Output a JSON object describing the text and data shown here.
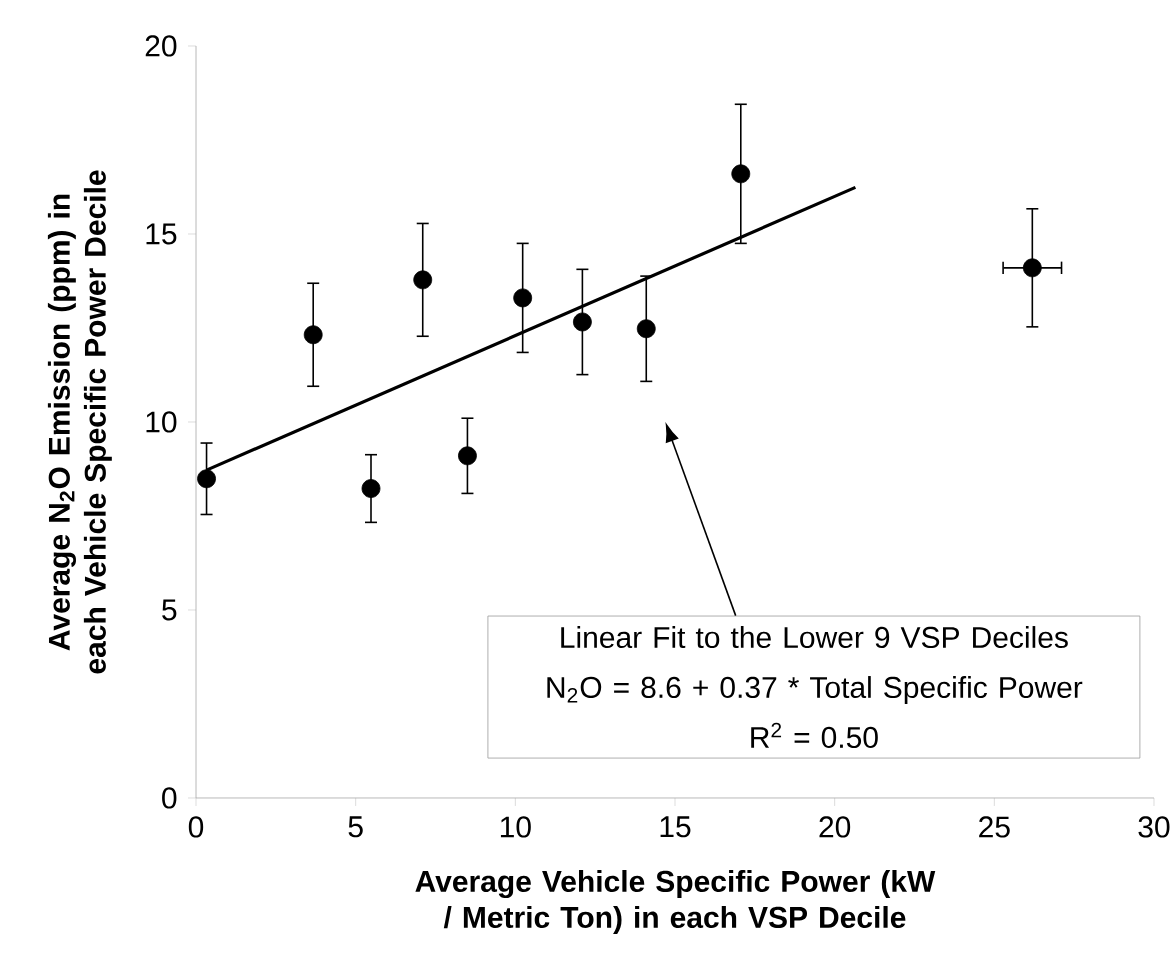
{
  "chart_data": {
    "type": "scatter",
    "xlabel": "Average Vehicle Specific Power (kW / Metric Ton) in each VSP Decile",
    "ylabel": "Average N$_{2}$O Emission (ppm) in each Vehicle Specific Power Decile",
    "xlim": [
      0,
      30
    ],
    "xticks": [
      0,
      5,
      10,
      15,
      20,
      25,
      30
    ],
    "ylim": [
      0,
      20
    ],
    "yticks": [
      0,
      5,
      10,
      15,
      20
    ],
    "grid": false,
    "series": [
      {
        "marker": "circle",
        "color": "#000000",
        "x": [
          0.33,
          3.67,
          5.48,
          7.1,
          8.5,
          10.23,
          12.1,
          14.1,
          17.06,
          26.19
        ],
        "values": [
          8.49,
          12.32,
          8.23,
          13.78,
          9.1,
          13.3,
          12.66,
          12.48,
          16.6,
          14.1
        ],
        "errors": [
          0.95,
          1.37,
          0.9,
          1.5,
          1.0,
          1.45,
          1.4,
          1.4,
          1.85,
          1.57
        ],
        "xerrors": [
          null,
          null,
          null,
          null,
          null,
          null,
          null,
          null,
          null,
          0.94
        ]
      },
      {
        "type": "line",
        "color": "#000000",
        "line_style": "solid",
        "x": [
          0.33,
          20.65
        ],
        "values": [
          8.72,
          16.24
        ]
      }
    ],
    "annotations": [
      "Linear Fit to the Lower 9 VSP Deciles",
      "N$_{2}$O = 8.6 + 0.37 * Total Specific Power",
      "R$^{2}$ = 0.50"
    ]
  }
}
